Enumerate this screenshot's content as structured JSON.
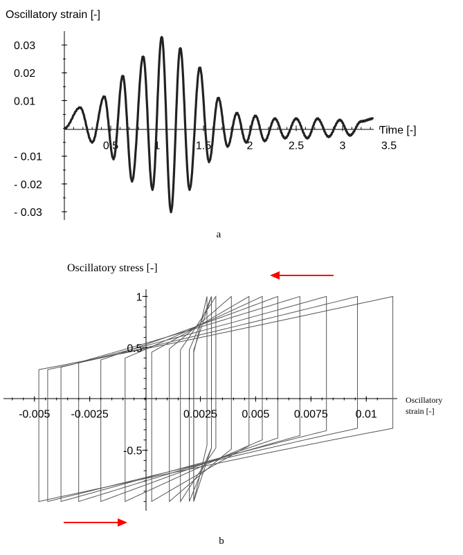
{
  "chart_data": [
    {
      "type": "line",
      "ylabel": "Oscillatory strain [-]",
      "xlabel": "Time [-]",
      "caption": "a",
      "xlim": [
        0,
        3.5
      ],
      "ylim": [
        -0.033,
        0.035
      ],
      "x_ticks": [
        {
          "value": 0.5,
          "label": "0.5"
        },
        {
          "value": 1,
          "label": "1"
        },
        {
          "value": 1.5,
          "label": "1.5"
        },
        {
          "value": 2,
          "label": "2"
        },
        {
          "value": 2.5,
          "label": "2.5"
        },
        {
          "value": 3,
          "label": "3"
        },
        {
          "value": 3.5,
          "label": "3.5"
        }
      ],
      "y_ticks": [
        {
          "value": 0.03,
          "label": "0.03"
        },
        {
          "value": 0.02,
          "label": "0.02"
        },
        {
          "value": 0.01,
          "label": "0.01"
        },
        {
          "value": -0.01,
          "label": "- 0.01"
        },
        {
          "value": -0.02,
          "label": "- 0.02"
        },
        {
          "value": -0.03,
          "label": "- 0.03"
        }
      ],
      "series": [
        {
          "color": "#222222",
          "x": [
            0.0,
            0.17,
            0.3,
            0.43,
            0.53,
            0.63,
            0.73,
            0.85,
            0.95,
            1.05,
            1.15,
            1.25,
            1.35,
            1.46,
            1.56,
            1.66,
            1.76,
            1.86,
            1.96,
            2.06,
            2.16,
            2.27,
            2.38,
            2.5,
            2.62,
            2.73,
            2.85,
            2.97,
            3.08,
            3.2,
            3.33
          ],
          "y": [
            0.0,
            0.0075,
            -0.005,
            0.0115,
            -0.011,
            0.019,
            -0.019,
            0.026,
            -0.022,
            0.033,
            -0.03,
            0.029,
            -0.022,
            0.022,
            -0.012,
            0.011,
            -0.0065,
            0.0055,
            -0.005,
            0.0045,
            -0.0045,
            0.0035,
            -0.0035,
            0.0035,
            -0.0035,
            0.0035,
            -0.003,
            0.003,
            -0.0025,
            0.0025,
            0.0035
          ]
        }
      ]
    },
    {
      "type": "line",
      "ylabel": "Oscillatory stress [-]",
      "xlabel_lines": [
        "Oscillatory",
        "strain [-]"
      ],
      "caption": "b",
      "xlim": [
        -0.0064,
        0.0114
      ],
      "ylim": [
        -1.09,
        1.07
      ],
      "x_ticks": [
        {
          "value": -0.005,
          "label": "-0.005"
        },
        {
          "value": -0.0025,
          "label": "-0.0025"
        },
        {
          "value": 0.0025,
          "label": "0.0025"
        },
        {
          "value": 0.005,
          "label": "0.005"
        },
        {
          "value": 0.0075,
          "label": "0.0075"
        },
        {
          "value": 0.01,
          "label": "0.01"
        }
      ],
      "y_ticks": [
        {
          "value": 1,
          "label": "1"
        },
        {
          "value": 0.5,
          "label": "0.5"
        },
        {
          "value": -0.5,
          "label": "-0.5"
        }
      ],
      "loops": [
        {
          "center": 0.0032,
          "amplitude": 0.008,
          "stiffness": 35
        },
        {
          "center": 0.0026,
          "amplitude": 0.007,
          "stiffness": 40
        },
        {
          "center": 0.0022,
          "amplitude": 0.006,
          "stiffness": 45
        },
        {
          "center": 0.002,
          "amplitude": 0.005,
          "stiffness": 50
        },
        {
          "center": 0.002,
          "amplitude": 0.004,
          "stiffness": 60
        },
        {
          "center": 0.0022,
          "amplitude": 0.0031,
          "stiffness": 75
        },
        {
          "center": 0.0025,
          "amplitude": 0.0022,
          "stiffness": 95
        },
        {
          "center": 0.0025,
          "amplitude": 0.0014,
          "stiffness": 140
        },
        {
          "center": 0.0024,
          "amplitude": 0.0008,
          "stiffness": 250
        },
        {
          "center": 0.0025,
          "amplitude": 0.0005,
          "stiffness": 400
        },
        {
          "center": 0.0026,
          "amplitude": 0.0004,
          "stiffness": 500
        },
        {
          "center": 0.0025,
          "amplitude": 0.0003,
          "stiffness": 700
        }
      ],
      "arrows": [
        {
          "direction": "left",
          "position": "top",
          "color": "#ff0000"
        },
        {
          "direction": "right",
          "position": "bottom",
          "color": "#ff0000"
        }
      ]
    }
  ]
}
